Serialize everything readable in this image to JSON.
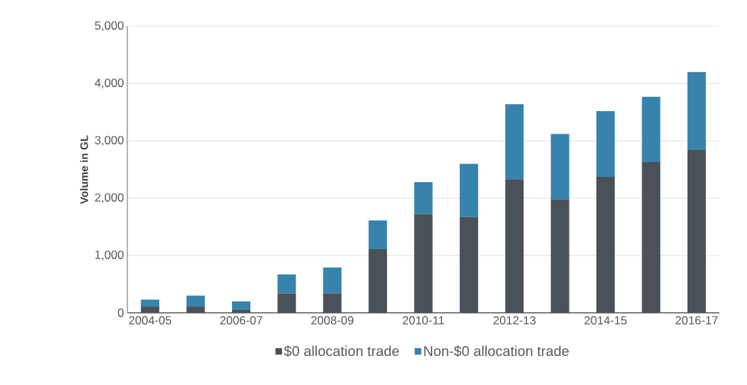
{
  "chart_data": {
    "type": "bar",
    "stacked": true,
    "ylabel": "Volume in GL",
    "categories": [
      "2004-05",
      null,
      "2006-07",
      null,
      "2008-09",
      null,
      "2010-11",
      null,
      "2012-13",
      null,
      "2014-15",
      null,
      "2016-17"
    ],
    "series": [
      {
        "name": "$0 allocation trade",
        "color": "#4a5158",
        "values": [
          110,
          110,
          50,
          340,
          340,
          1110,
          1720,
          1670,
          2330,
          1980,
          2370,
          2630,
          2840
        ]
      },
      {
        "name": "Non-$0 allocation trade",
        "color": "#3783ad",
        "values": [
          120,
          190,
          150,
          330,
          450,
          500,
          560,
          930,
          1310,
          1140,
          1150,
          1140,
          1360
        ]
      }
    ],
    "ylim": [
      0,
      5000
    ],
    "yticks": [
      0,
      {
        "value": 1000,
        "label": "1,000"
      },
      {
        "value": 2000,
        "label": "2,000"
      },
      {
        "value": 3000,
        "label": "3,000"
      },
      {
        "value": 4000,
        "label": "4,000"
      },
      {
        "value": 5000,
        "label": "5,000"
      }
    ],
    "grid": "y",
    "legend": "bottom"
  }
}
